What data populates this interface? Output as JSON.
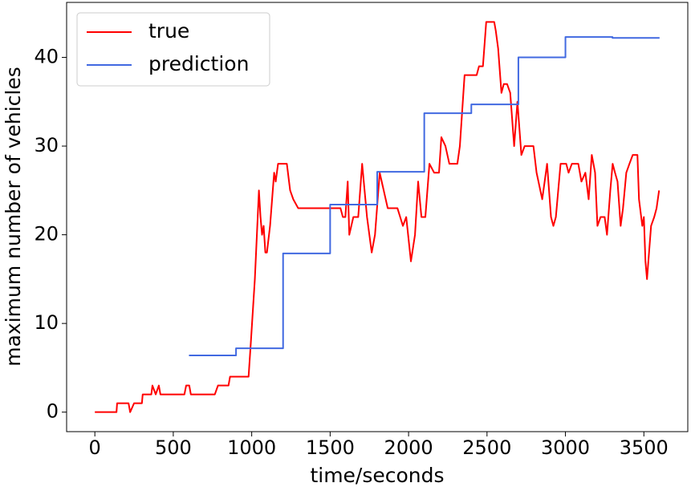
{
  "chart_data": {
    "type": "line",
    "xlabel": "time/seconds",
    "ylabel": "maximum number of vehicles",
    "xlim": [
      -180,
      3780
    ],
    "ylim": [
      -2.2,
      46.2
    ],
    "xticks": [
      0,
      500,
      1000,
      1500,
      2000,
      2500,
      3000,
      3500
    ],
    "yticks": [
      0,
      10,
      20,
      30,
      40
    ],
    "legend": "upper left",
    "series": [
      {
        "name": "true",
        "color": "#ff0000",
        "x": [
          0,
          138,
          142,
          215,
          225,
          250,
          300,
          305,
          360,
          367,
          388,
          408,
          418,
          571,
          582,
          602,
          612,
          765,
          785,
          852,
          862,
          980,
          995,
          1020,
          1046,
          1056,
          1066,
          1076,
          1087,
          1097,
          1117,
          1143,
          1153,
          1168,
          1224,
          1245,
          1265,
          1296,
          1566,
          1581,
          1597,
          1612,
          1622,
          1648,
          1679,
          1704,
          1735,
          1765,
          1786,
          1816,
          1867,
          1929,
          1964,
          1985,
          2015,
          2041,
          2061,
          2082,
          2107,
          2133,
          2163,
          2194,
          2209,
          2235,
          2260,
          2311,
          2327,
          2357,
          2434,
          2449,
          2474,
          2495,
          2546,
          2556,
          2571,
          2592,
          2607,
          2628,
          2648,
          2673,
          2694,
          2719,
          2740,
          2796,
          2816,
          2852,
          2883,
          2908,
          2923,
          2939,
          2969,
          3005,
          3020,
          3041,
          3082,
          3102,
          3127,
          3148,
          3168,
          3189,
          3204,
          3224,
          3250,
          3265,
          3286,
          3301,
          3316,
          3332,
          3352,
          3367,
          3388,
          3408,
          3429,
          3459,
          3469,
          3490,
          3500,
          3510,
          3520,
          3546,
          3566,
          3581,
          3597
        ],
        "values": [
          0,
          0,
          1,
          1,
          0,
          1,
          1,
          2,
          2,
          3,
          2,
          3,
          2,
          2,
          3,
          3,
          2,
          2,
          3,
          3,
          4,
          4,
          8,
          15,
          25,
          22,
          20,
          21,
          18,
          18,
          21,
          27,
          26,
          28,
          28,
          25,
          24,
          23,
          23,
          22,
          22,
          26,
          20,
          22,
          22,
          28,
          22,
          18,
          20,
          27,
          23,
          23,
          21,
          22,
          17,
          20,
          26,
          22,
          22,
          28,
          27,
          27,
          31,
          30,
          28,
          28,
          30,
          38,
          38,
          39,
          39,
          44,
          44,
          43,
          41,
          36,
          37,
          37,
          36,
          30,
          35,
          29,
          30,
          30,
          27,
          24,
          28,
          22,
          21,
          22,
          28,
          28,
          27,
          28,
          28,
          26,
          27,
          24,
          29,
          27,
          21,
          22,
          22,
          20,
          25,
          28,
          27,
          26,
          21,
          23,
          27,
          28,
          29,
          29,
          24,
          21,
          22,
          17,
          15,
          21,
          22,
          23,
          25
        ]
      },
      {
        "name": "prediction",
        "color": "#4169e1",
        "x": [
          600,
          900,
          900,
          1200,
          1200,
          1500,
          1500,
          1800,
          1800,
          2100,
          2100,
          2400,
          2400,
          2700,
          2700,
          3000,
          3000,
          3300,
          3300,
          3600
        ],
        "values": [
          6.4,
          6.4,
          7.2,
          7.2,
          17.9,
          17.9,
          23.4,
          23.4,
          27.1,
          27.1,
          33.7,
          33.7,
          34.7,
          34.7,
          40,
          40,
          42.3,
          42.3,
          42.2,
          42.2
        ]
      }
    ]
  }
}
